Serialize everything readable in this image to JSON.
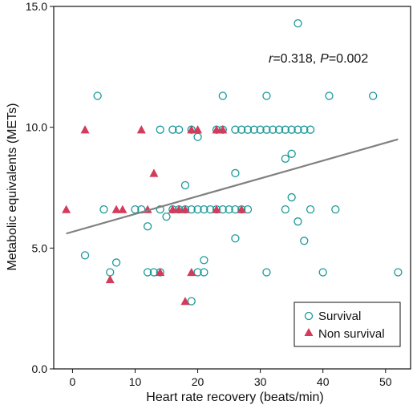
{
  "chart_data": {
    "type": "scatter",
    "xlabel": "Heart rate recovery (beats/min)",
    "ylabel": "Metabolic equivalents (METs)",
    "xlim": [
      -3,
      54
    ],
    "ylim": [
      0,
      15
    ],
    "x_ticks": [
      0,
      10,
      20,
      30,
      40,
      50
    ],
    "y_ticks": [
      0.0,
      5.0,
      10.0,
      15.0
    ],
    "x_tick_labels": [
      "0",
      "10",
      "20",
      "30",
      "40",
      "50"
    ],
    "y_tick_labels": [
      "0.0",
      "5.0",
      "10.0",
      "15.0"
    ],
    "grid": false,
    "legend_position": "bottom-right",
    "annotation": {
      "r_symbol": "r",
      "r_value": "=0.318,",
      "p_symbol": "P",
      "p_value": "=0.002"
    },
    "trendline": {
      "x": [
        -1,
        52
      ],
      "y": [
        5.6,
        9.5
      ],
      "color": "#808080"
    },
    "series": [
      {
        "name": "Survival",
        "marker": "circle",
        "color": "#1a9999",
        "points": [
          [
            36,
            14.3
          ],
          [
            4,
            11.3
          ],
          [
            24,
            11.3
          ],
          [
            31,
            11.3
          ],
          [
            41,
            11.3
          ],
          [
            48,
            11.3
          ],
          [
            14,
            9.9
          ],
          [
            16,
            9.9
          ],
          [
            17,
            9.9
          ],
          [
            19,
            9.9
          ],
          [
            23,
            9.9
          ],
          [
            24,
            9.9
          ],
          [
            26,
            9.9
          ],
          [
            27,
            9.9
          ],
          [
            28,
            9.9
          ],
          [
            29,
            9.9
          ],
          [
            30,
            9.9
          ],
          [
            31,
            9.9
          ],
          [
            32,
            9.9
          ],
          [
            33,
            9.9
          ],
          [
            34,
            9.9
          ],
          [
            35,
            9.9
          ],
          [
            36,
            9.9
          ],
          [
            37,
            9.9
          ],
          [
            38,
            9.9
          ],
          [
            20,
            9.6
          ],
          [
            35,
            8.9
          ],
          [
            34,
            8.7
          ],
          [
            26,
            8.1
          ],
          [
            18,
            7.6
          ],
          [
            35,
            7.1
          ],
          [
            5,
            6.6
          ],
          [
            10,
            6.6
          ],
          [
            11,
            6.6
          ],
          [
            14,
            6.6
          ],
          [
            16,
            6.6
          ],
          [
            17,
            6.6
          ],
          [
            18,
            6.6
          ],
          [
            19,
            6.6
          ],
          [
            20,
            6.6
          ],
          [
            21,
            6.6
          ],
          [
            22,
            6.6
          ],
          [
            23,
            6.6
          ],
          [
            24,
            6.6
          ],
          [
            25,
            6.6
          ],
          [
            26,
            6.6
          ],
          [
            27,
            6.6
          ],
          [
            28,
            6.6
          ],
          [
            34,
            6.6
          ],
          [
            38,
            6.6
          ],
          [
            42,
            6.6
          ],
          [
            15,
            6.3
          ],
          [
            36,
            6.1
          ],
          [
            12,
            5.9
          ],
          [
            26,
            5.4
          ],
          [
            37,
            5.3
          ],
          [
            2,
            4.7
          ],
          [
            21,
            4.5
          ],
          [
            7,
            4.4
          ],
          [
            6,
            4.0
          ],
          [
            12,
            4.0
          ],
          [
            13,
            4.0
          ],
          [
            14,
            4.0
          ],
          [
            20,
            4.0
          ],
          [
            21,
            4.0
          ],
          [
            31,
            4.0
          ],
          [
            40,
            4.0
          ],
          [
            52,
            4.0
          ],
          [
            19,
            2.8
          ]
        ]
      },
      {
        "name": "Non survival",
        "marker": "triangle",
        "color": "#d43a5a",
        "points": [
          [
            2,
            9.9
          ],
          [
            11,
            9.9
          ],
          [
            19,
            9.9
          ],
          [
            20,
            9.9
          ],
          [
            23,
            9.9
          ],
          [
            24,
            9.9
          ],
          [
            13,
            8.1
          ],
          [
            -1,
            6.6
          ],
          [
            7,
            6.6
          ],
          [
            8,
            6.6
          ],
          [
            12,
            6.6
          ],
          [
            16,
            6.6
          ],
          [
            17,
            6.6
          ],
          [
            18,
            6.6
          ],
          [
            23,
            6.6
          ],
          [
            27,
            6.6
          ],
          [
            14,
            4.0
          ],
          [
            19,
            4.0
          ],
          [
            6,
            3.7
          ],
          [
            18,
            2.8
          ]
        ]
      }
    ]
  }
}
